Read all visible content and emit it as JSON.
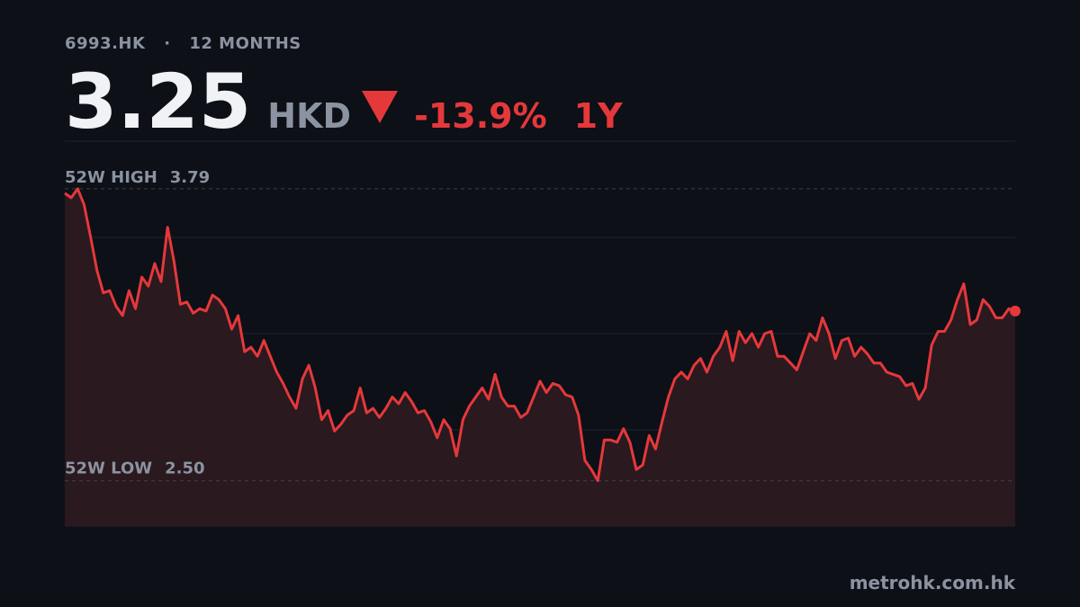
{
  "header": {
    "ticker": "6993.HK",
    "separator": "·",
    "period": "12 MONTHS",
    "price": 3.25,
    "currency": "HKD",
    "change": {
      "value": -13.9,
      "label": "-13.9%"
    },
    "range": "1Y"
  },
  "chart_data": {
    "type": "line",
    "color": "#e5383b",
    "fill": "#2a191e",
    "ylim": [
      2.3,
      4.0
    ],
    "high_label": "52W HIGH",
    "high": 3.79,
    "low_label": "52W LOW",
    "low": {
      "value": 2.5,
      "label": "2.50"
    },
    "values": [
      3.77,
      3.75,
      3.79,
      3.72,
      3.58,
      3.43,
      3.33,
      3.34,
      3.27,
      3.23,
      3.34,
      3.26,
      3.4,
      3.36,
      3.46,
      3.38,
      3.62,
      3.47,
      3.28,
      3.29,
      3.24,
      3.26,
      3.25,
      3.32,
      3.3,
      3.26,
      3.17,
      3.23,
      3.07,
      3.09,
      3.05,
      3.12,
      3.05,
      2.98,
      2.93,
      2.87,
      2.82,
      2.95,
      3.01,
      2.91,
      2.77,
      2.81,
      2.72,
      2.75,
      2.79,
      2.81,
      2.91,
      2.8,
      2.82,
      2.78,
      2.82,
      2.87,
      2.84,
      2.89,
      2.85,
      2.8,
      2.81,
      2.76,
      2.69,
      2.77,
      2.73,
      2.61,
      2.77,
      2.83,
      2.87,
      2.91,
      2.86,
      2.97,
      2.87,
      2.83,
      2.83,
      2.78,
      2.8,
      2.87,
      2.94,
      2.89,
      2.93,
      2.92,
      2.88,
      2.87,
      2.79,
      2.59,
      2.55,
      2.5,
      2.68,
      2.68,
      2.67,
      2.73,
      2.67,
      2.55,
      2.57,
      2.7,
      2.64,
      2.76,
      2.87,
      2.95,
      2.98,
      2.95,
      3.01,
      3.04,
      2.98,
      3.05,
      3.09,
      3.16,
      3.03,
      3.16,
      3.11,
      3.15,
      3.09,
      3.15,
      3.16,
      3.05,
      3.05,
      3.02,
      2.99,
      3.07,
      3.15,
      3.12,
      3.22,
      3.15,
      3.04,
      3.12,
      3.13,
      3.05,
      3.09,
      3.06,
      3.02,
      3.02,
      2.98,
      2.97,
      2.96,
      2.92,
      2.93,
      2.86,
      2.91,
      3.1,
      3.16,
      3.16,
      3.21,
      3.3,
      3.37,
      3.19,
      3.21,
      3.3,
      3.27,
      3.22,
      3.22,
      3.26,
      3.25
    ]
  },
  "footer": {
    "source": "metrohk.com.hk"
  }
}
